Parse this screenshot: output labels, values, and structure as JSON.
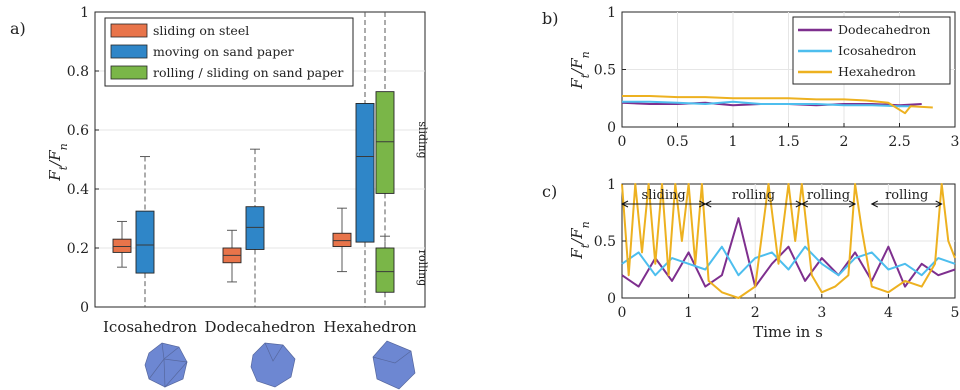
{
  "chart_data": [
    {
      "id": "a",
      "panel_label": "a)",
      "type": "box",
      "ylabel": "Ft/Fn",
      "ylim": [
        0,
        1
      ],
      "yticks": [
        0,
        0.2,
        0.4,
        0.6,
        0.8,
        1
      ],
      "categories": [
        "Icosahedron",
        "Dodecahedron",
        "Hexahedron"
      ],
      "legend": [
        {
          "name": "sliding on steel",
          "color": "#E8744A"
        },
        {
          "name": "moving on sand paper",
          "color": "#2F86C8"
        },
        {
          "name": "rolling / sliding on sand paper",
          "color": "#7AB648"
        }
      ],
      "boxes": [
        {
          "category": "Icosahedron",
          "series": "sliding on steel",
          "min": 0.135,
          "q1": 0.185,
          "median": 0.205,
          "q3": 0.23,
          "max": 0.29
        },
        {
          "category": "Icosahedron",
          "series": "moving on sand paper",
          "min": 0.0,
          "q1": 0.115,
          "median": 0.21,
          "q3": 0.325,
          "max": 0.51
        },
        {
          "category": "Dodecahedron",
          "series": "sliding on steel",
          "min": 0.085,
          "q1": 0.15,
          "median": 0.175,
          "q3": 0.2,
          "max": 0.26
        },
        {
          "category": "Dodecahedron",
          "series": "moving on sand paper",
          "min": 0.0,
          "q1": 0.195,
          "median": 0.27,
          "q3": 0.34,
          "max": 0.535
        },
        {
          "category": "Hexahedron",
          "series": "sliding on steel",
          "min": 0.12,
          "q1": 0.205,
          "median": 0.225,
          "q3": 0.25,
          "max": 0.335
        },
        {
          "category": "Hexahedron",
          "series": "moving on sand paper",
          "min": 0.0,
          "q1": 0.22,
          "median": 0.51,
          "q3": 0.69,
          "max": 1.0
        },
        {
          "category": "Hexahedron",
          "series": "rolling / sliding on sand paper",
          "subset": "sliding",
          "min": 0.2,
          "q1": 0.385,
          "median": 0.56,
          "q3": 0.73,
          "max": 1.0
        },
        {
          "category": "Hexahedron",
          "series": "rolling / sliding on sand paper",
          "subset": "rolling",
          "min": 0.0,
          "q1": 0.05,
          "median": 0.12,
          "q3": 0.2,
          "max": 0.24
        }
      ],
      "annotations": [
        "sliding",
        "rolling"
      ]
    },
    {
      "id": "b",
      "panel_label": "b)",
      "type": "line",
      "ylabel": "Ft/Fn",
      "xlim": [
        0,
        3
      ],
      "ylim": [
        0,
        1
      ],
      "xticks": [
        0,
        0.5,
        1,
        1.5,
        2,
        2.5,
        3
      ],
      "yticks": [
        0,
        0.5,
        1
      ],
      "legend_position": "top-right",
      "grid": true,
      "series": [
        {
          "name": "Dodecahedron",
          "color": "#7E2F8E",
          "x": [
            0,
            0.25,
            0.5,
            0.75,
            1.0,
            1.25,
            1.5,
            1.75,
            2.0,
            2.25,
            2.5,
            2.7
          ],
          "y": [
            0.21,
            0.2,
            0.2,
            0.21,
            0.19,
            0.2,
            0.2,
            0.19,
            0.2,
            0.2,
            0.19,
            0.2
          ]
        },
        {
          "name": "Icosahedron",
          "color": "#4DBEEE",
          "x": [
            0,
            0.25,
            0.5,
            0.75,
            1.0,
            1.25,
            1.5,
            1.75,
            2.0,
            2.25,
            2.5,
            2.6
          ],
          "y": [
            0.22,
            0.22,
            0.21,
            0.2,
            0.22,
            0.2,
            0.2,
            0.2,
            0.19,
            0.19,
            0.18,
            0.18
          ]
        },
        {
          "name": "Hexahedron",
          "color": "#EDB120",
          "x": [
            0,
            0.25,
            0.5,
            0.75,
            1.0,
            1.25,
            1.5,
            1.75,
            2.0,
            2.2,
            2.4,
            2.55,
            2.6,
            2.8
          ],
          "y": [
            0.27,
            0.27,
            0.26,
            0.26,
            0.25,
            0.25,
            0.25,
            0.24,
            0.24,
            0.23,
            0.21,
            0.12,
            0.18,
            0.17
          ]
        }
      ]
    },
    {
      "id": "c",
      "panel_label": "c)",
      "type": "line",
      "ylabel": "Ft/Fn",
      "xlabel": "Time in s",
      "xlim": [
        0,
        5
      ],
      "ylim": [
        0,
        1
      ],
      "xticks": [
        0,
        1,
        2,
        3,
        4,
        5
      ],
      "yticks": [
        0,
        0.5,
        1
      ],
      "grid": true,
      "phases": [
        {
          "label": "sliding",
          "start": 0,
          "end": 1.25
        },
        {
          "label": "rolling",
          "start": 1.25,
          "end": 2.7
        },
        {
          "label": "rolling",
          "start": 2.7,
          "end": 3.5
        },
        {
          "label": "rolling",
          "start": 3.75,
          "end": 4.8
        }
      ],
      "series": [
        {
          "name": "Dodecahedron",
          "color": "#7E2F8E",
          "x": [
            0,
            0.25,
            0.5,
            0.75,
            1.0,
            1.25,
            1.5,
            1.75,
            2.0,
            2.25,
            2.5,
            2.75,
            3.0,
            3.25,
            3.5,
            3.75,
            4.0,
            4.25,
            4.5,
            4.75,
            5.0
          ],
          "y": [
            0.2,
            0.1,
            0.35,
            0.15,
            0.4,
            0.1,
            0.2,
            0.7,
            0.1,
            0.3,
            0.45,
            0.15,
            0.35,
            0.2,
            0.4,
            0.15,
            0.45,
            0.1,
            0.3,
            0.2,
            0.25
          ]
        },
        {
          "name": "Icosahedron",
          "color": "#4DBEEE",
          "x": [
            0,
            0.25,
            0.5,
            0.75,
            1.0,
            1.25,
            1.5,
            1.75,
            2.0,
            2.25,
            2.5,
            2.75,
            3.0,
            3.25,
            3.5,
            3.75,
            4.0,
            4.25,
            4.5,
            4.75,
            5.0
          ],
          "y": [
            0.3,
            0.4,
            0.2,
            0.35,
            0.3,
            0.25,
            0.45,
            0.2,
            0.35,
            0.4,
            0.25,
            0.45,
            0.3,
            0.2,
            0.35,
            0.4,
            0.25,
            0.3,
            0.2,
            0.35,
            0.3
          ]
        },
        {
          "name": "Hexahedron",
          "color": "#EDB120",
          "x": [
            0,
            0.1,
            0.2,
            0.3,
            0.4,
            0.5,
            0.6,
            0.7,
            0.8,
            0.9,
            1.0,
            1.1,
            1.2,
            1.3,
            1.5,
            1.75,
            2.0,
            2.2,
            2.35,
            2.5,
            2.6,
            2.7,
            2.85,
            3.0,
            3.2,
            3.4,
            3.5,
            3.6,
            3.75,
            4.0,
            4.25,
            4.5,
            4.7,
            4.8,
            4.9,
            5.0
          ],
          "y": [
            1.0,
            0.2,
            1.0,
            0.4,
            1.0,
            0.3,
            1.0,
            0.2,
            1.0,
            0.5,
            1.0,
            0.3,
            1.0,
            0.15,
            0.05,
            0.0,
            0.1,
            1.0,
            0.3,
            1.0,
            0.5,
            1.0,
            0.2,
            0.05,
            0.1,
            0.2,
            1.0,
            0.6,
            0.1,
            0.05,
            0.15,
            0.1,
            0.3,
            1.0,
            0.5,
            0.35
          ]
        }
      ]
    }
  ],
  "shape_icons": [
    {
      "name": "icosahedron-icon",
      "color": "#6D87D2"
    },
    {
      "name": "dodecahedron-icon",
      "color": "#6D87D2"
    },
    {
      "name": "hexahedron-icon",
      "color": "#6D87D2"
    }
  ]
}
